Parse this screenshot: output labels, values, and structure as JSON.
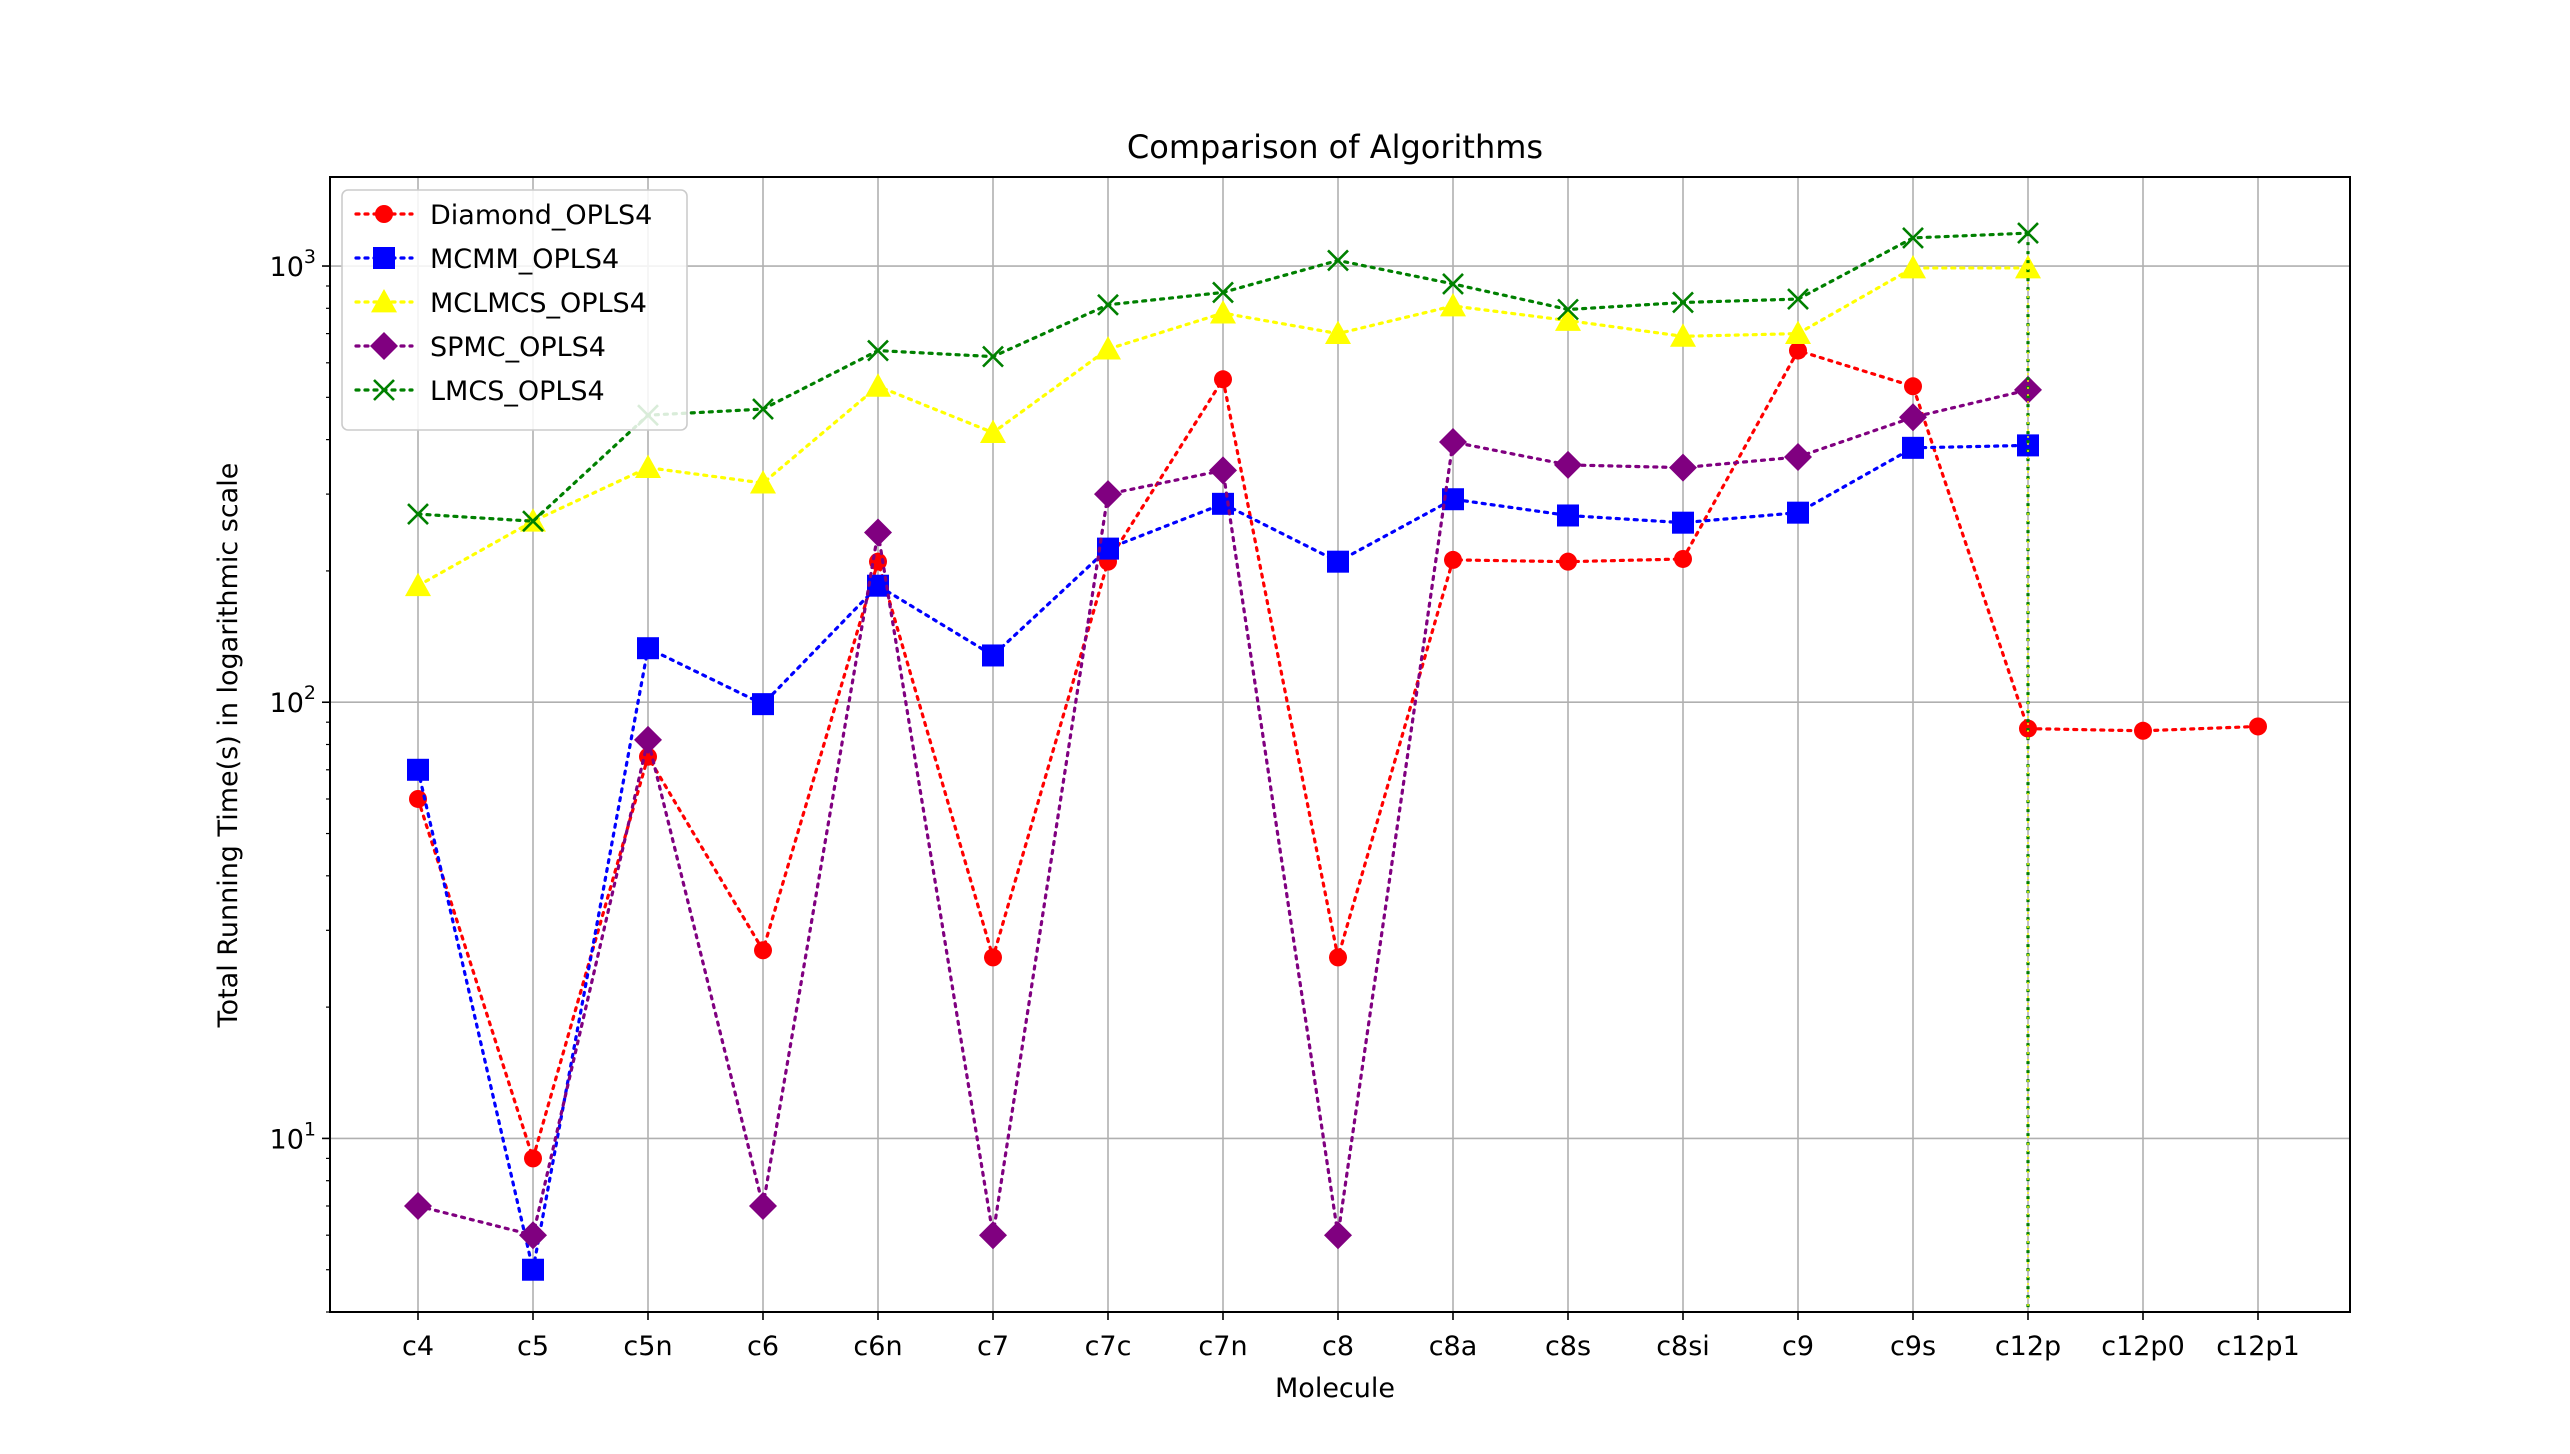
{
  "chart_data": {
    "type": "line",
    "title": "Comparison of Algorithms",
    "xlabel": "Molecule",
    "ylabel": "Total Running Time(s) in logarithmic scale",
    "yscale": "log",
    "ylim": [
      4,
      1600
    ],
    "yticks": [
      {
        "value": 10,
        "base": "10",
        "exp": "1"
      },
      {
        "value": 100,
        "base": "10",
        "exp": "2"
      },
      {
        "value": 1000,
        "base": "10",
        "exp": "3"
      }
    ],
    "grid": true,
    "legend_position": "top-left",
    "categories": [
      "c4",
      "c5",
      "c5n",
      "c6",
      "c6n",
      "c7",
      "c7c",
      "c7n",
      "c8",
      "c8a",
      "c8s",
      "c8si",
      "c9",
      "c9s",
      "c12p",
      "c12p0",
      "c12p1"
    ],
    "series": [
      {
        "name": "Diamond_OPLS4",
        "color": "#ff0000",
        "marker": "circle",
        "values": [
          60,
          9,
          75,
          27,
          210,
          26,
          210,
          550,
          26,
          212,
          210,
          213,
          640,
          530,
          87,
          86,
          88
        ]
      },
      {
        "name": "MCMM_OPLS4",
        "color": "#0000ff",
        "marker": "square",
        "values": [
          70,
          5,
          133,
          99,
          185,
          128,
          225,
          285,
          210,
          292,
          268,
          258,
          272,
          383,
          388,
          null,
          null
        ]
      },
      {
        "name": "MCLMCS_OPLS4",
        "color": "#ffff00",
        "marker": "triangle",
        "values": [
          185,
          260,
          345,
          318,
          530,
          415,
          645,
          780,
          700,
          810,
          750,
          690,
          700,
          990,
          990,
          null,
          null
        ]
      },
      {
        "name": "SPMC_OPLS4",
        "color": "#800080",
        "marker": "diamond",
        "values": [
          7,
          6,
          82,
          7,
          245,
          6,
          300,
          340,
          6,
          395,
          350,
          345,
          365,
          450,
          520,
          null,
          null
        ]
      },
      {
        "name": "LMCS_OPLS4",
        "color": "#008000",
        "marker": "x",
        "values": [
          270,
          260,
          455,
          470,
          640,
          620,
          815,
          870,
          1030,
          910,
          795,
          825,
          840,
          1160,
          1190,
          null,
          null
        ]
      }
    ]
  }
}
